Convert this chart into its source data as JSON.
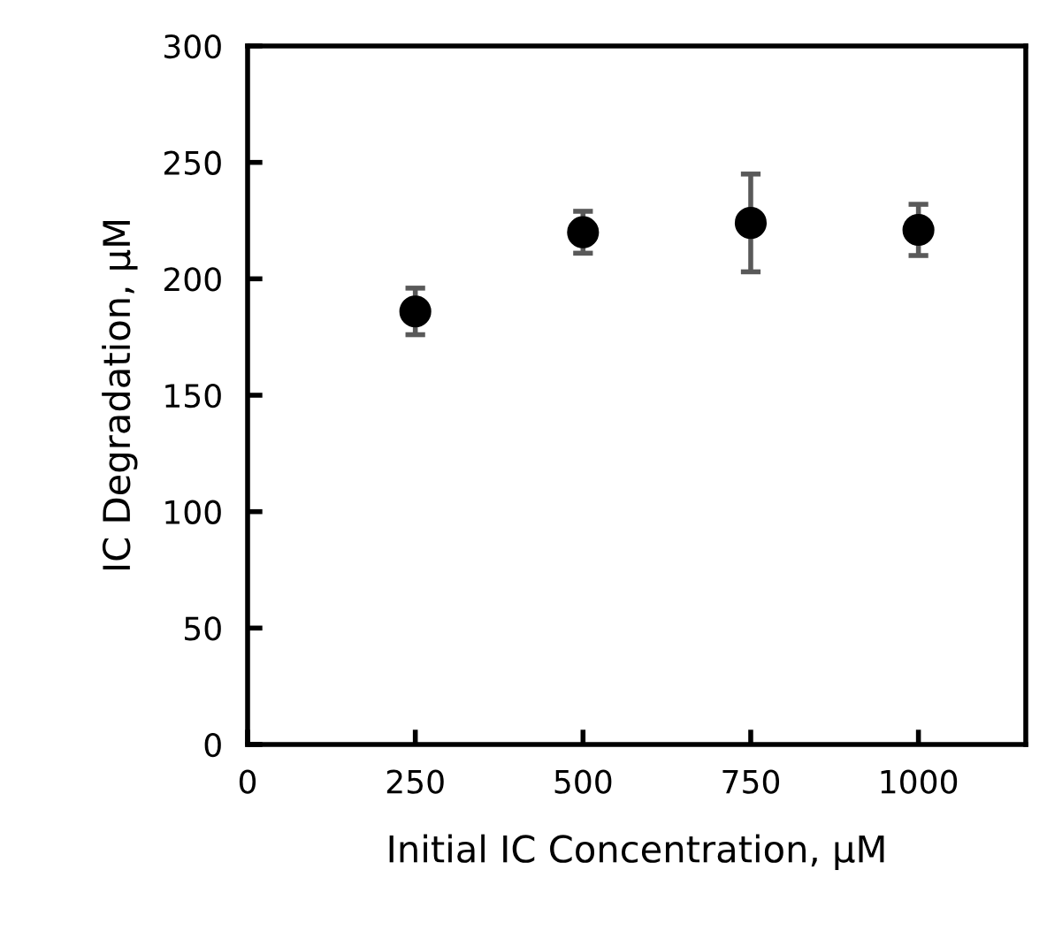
{
  "chart_data": {
    "type": "scatter",
    "xlabel": "Initial IC Concentration, µM",
    "ylabel": "IC Degradation, µM",
    "x": [
      250,
      500,
      750,
      1000
    ],
    "values": [
      186,
      220,
      224,
      221
    ],
    "errors": [
      10,
      9,
      21,
      11
    ],
    "color": "#000000",
    "marker": "circle",
    "xlim": [
      0,
      1160
    ],
    "xticks": [
      0,
      250,
      500,
      750,
      1000
    ],
    "ylim": [
      0,
      300
    ],
    "yticks": [
      0,
      50,
      100,
      150,
      200,
      250,
      300
    ],
    "grid": false
  }
}
